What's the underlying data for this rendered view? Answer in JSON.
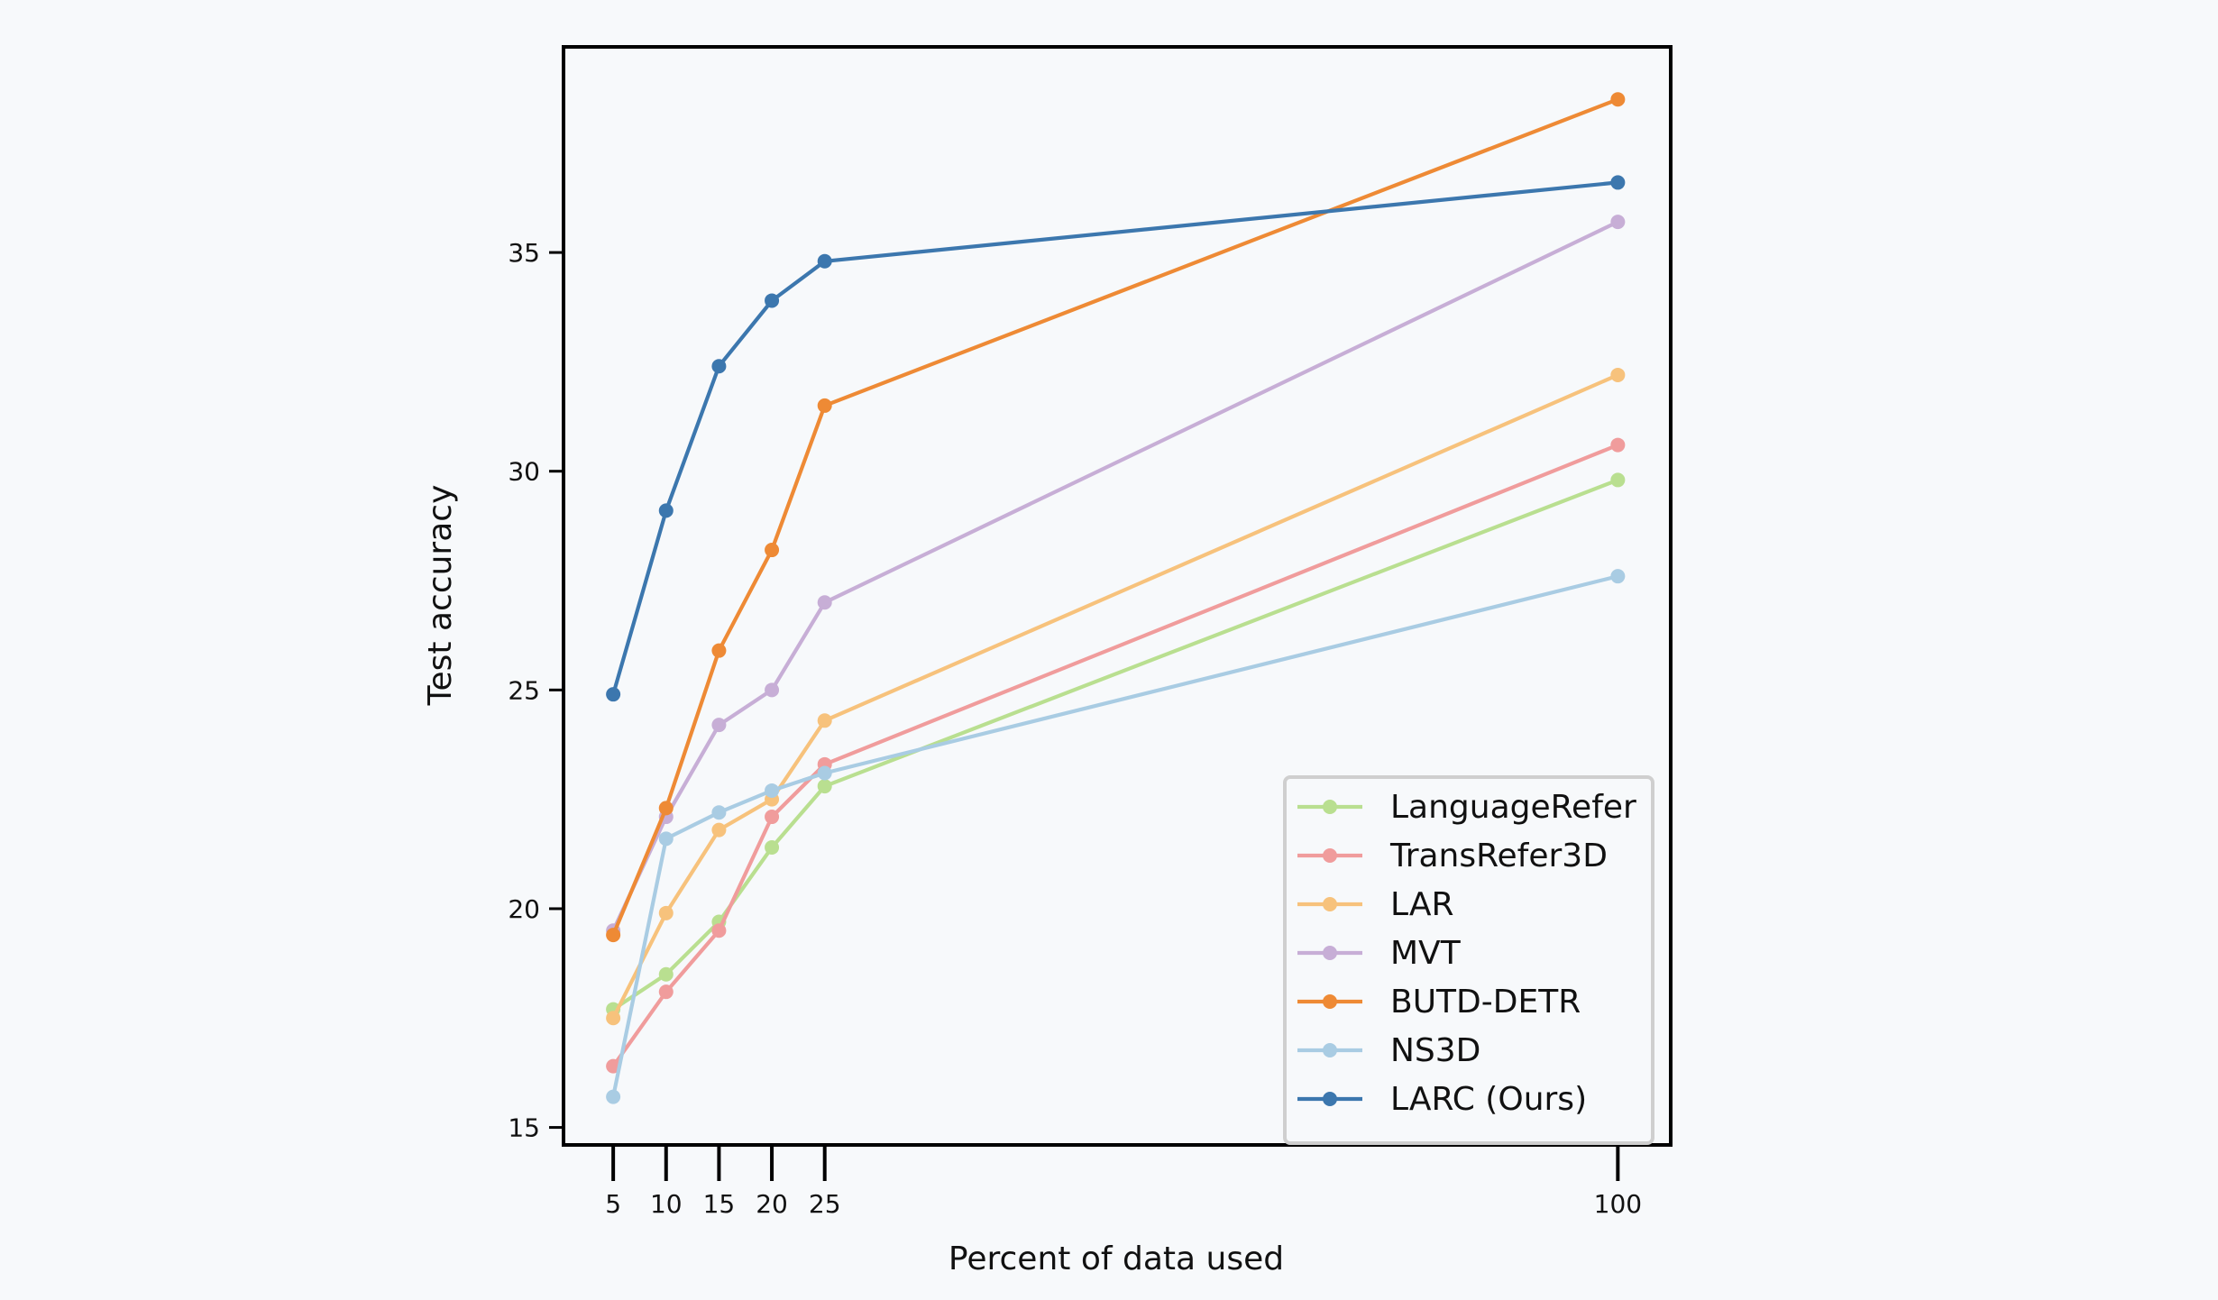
{
  "chart_data": {
    "type": "line",
    "xlabel": "Percent of data used",
    "ylabel": "Test accuracy",
    "x": [
      5,
      10,
      15,
      20,
      25,
      100
    ],
    "xticks": [
      5,
      10,
      15,
      20,
      25,
      100
    ],
    "yticks": [
      15,
      20,
      25,
      30,
      35
    ],
    "xlim": [
      0.3,
      105
    ],
    "ylim": [
      14.6,
      39.7
    ],
    "grid": false,
    "legend_position": "lower-right",
    "series": [
      {
        "name": "LanguageRefer",
        "color": "#b9df90",
        "values": [
          17.7,
          18.5,
          19.7,
          21.4,
          22.8,
          29.8
        ]
      },
      {
        "name": "TransRefer3D",
        "color": "#f09c9c",
        "values": [
          16.4,
          18.1,
          19.5,
          22.1,
          23.3,
          30.6
        ]
      },
      {
        "name": "LAR",
        "color": "#f7c27c",
        "values": [
          17.5,
          19.9,
          21.8,
          22.5,
          24.3,
          32.2
        ]
      },
      {
        "name": "MVT",
        "color": "#c7aed6",
        "values": [
          19.5,
          22.1,
          24.2,
          25.0,
          27.0,
          35.7
        ]
      },
      {
        "name": "BUTD-DETR",
        "color": "#ee8a35",
        "values": [
          19.4,
          22.3,
          25.9,
          28.2,
          31.5,
          38.5
        ]
      },
      {
        "name": "NS3D",
        "color": "#a9cce3",
        "values": [
          15.7,
          21.6,
          22.2,
          22.7,
          23.1,
          27.6
        ]
      },
      {
        "name": "LARC (Ours)",
        "color": "#3c77ae",
        "values": [
          24.9,
          29.1,
          32.4,
          33.9,
          34.8,
          36.6
        ]
      }
    ]
  }
}
